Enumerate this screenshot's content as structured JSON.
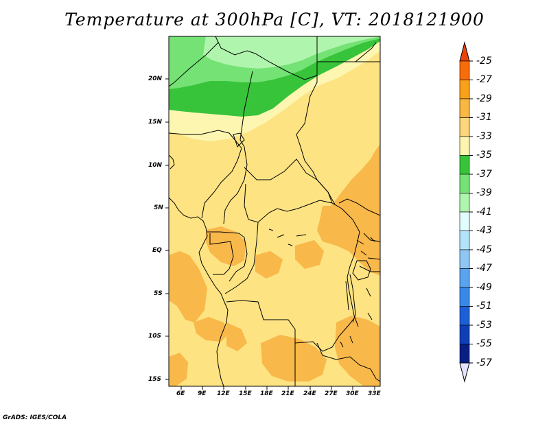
{
  "title": "Temperature at 300hPa [C], VT: 2018121900",
  "credit": "GrADS: IGES/COLA",
  "map": {
    "lat_labels": [
      "20N",
      "15N",
      "10N",
      "5N",
      "EQ",
      "5S",
      "10S",
      "15S"
    ],
    "lon_labels": [
      "6E",
      "9E",
      "12E",
      "15E",
      "18E",
      "21E",
      "24E",
      "27E",
      "30E",
      "33E"
    ]
  },
  "colorbar": {
    "levels": [
      "-25",
      "-27",
      "-29",
      "-31",
      "-33",
      "-35",
      "-37",
      "-39",
      "-41",
      "-43",
      "-45",
      "-47",
      "-49",
      "-51",
      "-53",
      "-55",
      "-57"
    ],
    "colors": [
      "#e8450a",
      "#f76c0b",
      "#faa11a",
      "#f9b843",
      "#fcd67a",
      "#fdf4b0",
      "#38c43a",
      "#74e274",
      "#b0f5ad",
      "#e2fdfd",
      "#b3e3fb",
      "#90c6f4",
      "#5aa3ee",
      "#3989e8",
      "#1c5fd6",
      "#0e3fb6",
      "#0a1f84",
      "#e4e4ff"
    ]
  },
  "palette": {
    "tan": "#fde382",
    "orange": "#f8b84a",
    "pale": "#fdf6b1",
    "green_light": "#b0f5ad",
    "green_mid": "#74e274",
    "green_dark": "#38c43a"
  }
}
